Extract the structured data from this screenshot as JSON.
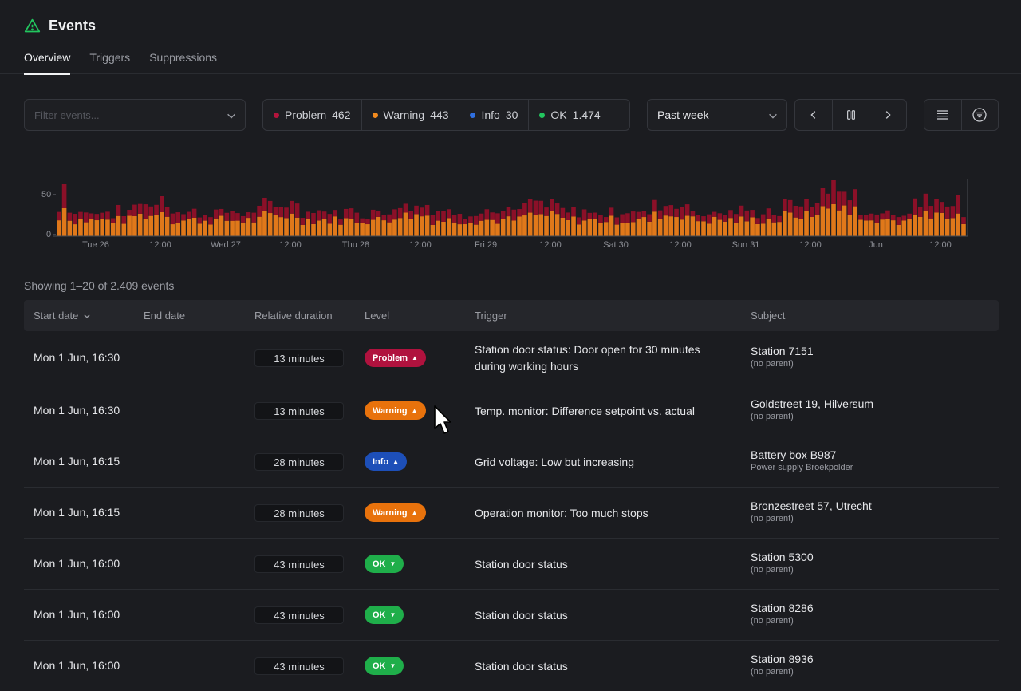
{
  "page": {
    "title": "Events",
    "title_icon": "warning-triangle-icon",
    "accent": "#22c55e"
  },
  "tabs": [
    {
      "label": "Overview",
      "active": true
    },
    {
      "label": "Triggers",
      "active": false
    },
    {
      "label": "Suppressions",
      "active": false
    }
  ],
  "filter": {
    "placeholder": "Filter events..."
  },
  "levels": [
    {
      "name": "Problem",
      "count": "462",
      "color": "#b4143c"
    },
    {
      "name": "Warning",
      "count": "443",
      "color": "#f28a1e"
    },
    {
      "name": "Info",
      "count": "30",
      "color": "#2f6fe0"
    },
    {
      "name": "OK",
      "count": "1.474",
      "color": "#22c55e"
    }
  ],
  "period": {
    "selected": "Past week"
  },
  "chart_data": {
    "type": "bar",
    "stacked": true,
    "yticks": [
      "50",
      "0"
    ],
    "ylim": [
      0,
      70
    ],
    "xticks": [
      "Tue 26",
      "12:00",
      "Wed 27",
      "12:00",
      "Thu 28",
      "12:00",
      "Fri 29",
      "12:00",
      "Sat 30",
      "12:00",
      "Sun 31",
      "12:00",
      "Jun",
      "12:00"
    ],
    "series": [
      {
        "name": "Warning",
        "color": "#e0781a"
      },
      {
        "name": "Problem",
        "color": "#8b1028"
      }
    ]
  },
  "summary": "Showing 1–20 of 2.409 events",
  "columns": {
    "start": "Start date",
    "end": "End date",
    "duration": "Relative duration",
    "level": "Level",
    "trigger": "Trigger",
    "subject": "Subject"
  },
  "rows": [
    {
      "start": "Mon 1 Jun, 16:30",
      "duration": "13 minutes",
      "level": "Problem",
      "trigger": "Station door status: Door open for 30 minutes during working hours",
      "subject": "Station 7151",
      "parent": "(no parent)"
    },
    {
      "start": "Mon 1 Jun, 16:30",
      "duration": "13 minutes",
      "level": "Warning",
      "trigger": "Temp. monitor: Difference setpoint vs. actual",
      "subject": "Goldstreet 19, Hilversum",
      "parent": "(no parent)"
    },
    {
      "start": "Mon 1 Jun, 16:15",
      "duration": "28 minutes",
      "level": "Info",
      "trigger": "Grid voltage: Low but increasing",
      "subject": "Battery box B987",
      "parent": "Power supply Broekpolder"
    },
    {
      "start": "Mon 1 Jun, 16:15",
      "duration": "28 minutes",
      "level": "Warning",
      "trigger": "Operation monitor: Too much stops",
      "subject": "Bronzestreet 57, Utrecht",
      "parent": "(no parent)"
    },
    {
      "start": "Mon 1 Jun, 16:00",
      "duration": "43 minutes",
      "level": "OK",
      "trigger": "Station door status",
      "subject": "Station 5300",
      "parent": "(no parent)"
    },
    {
      "start": "Mon 1 Jun, 16:00",
      "duration": "43 minutes",
      "level": "OK",
      "trigger": "Station door status",
      "subject": "Station 8286",
      "parent": "(no parent)"
    },
    {
      "start": "Mon 1 Jun, 16:00",
      "duration": "43 minutes",
      "level": "OK",
      "trigger": "Station door status",
      "subject": "Station 8936",
      "parent": "(no parent)"
    }
  ],
  "badge_colors": {
    "Problem": "#b0123e",
    "Warning": "#e8720c",
    "Info": "#1d4fb8",
    "OK": "#1fae4a"
  }
}
